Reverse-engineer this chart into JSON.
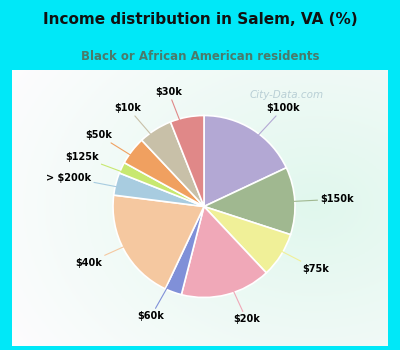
{
  "title": "Income distribution in Salem, VA (%)",
  "subtitle": "Black or African American residents",
  "title_color": "#111111",
  "subtitle_color": "#4a7a6a",
  "bg_cyan": "#00e8f8",
  "bg_chart_color": "#e8f8f0",
  "watermark": "City-Data.com",
  "labels": [
    "$100k",
    "$150k",
    "$75k",
    "$20k",
    "$60k",
    "$40k",
    "> $200k",
    "$125k",
    "$50k",
    "$10k",
    "$30k"
  ],
  "values": [
    18,
    12,
    8,
    16,
    3,
    20,
    4,
    2,
    5,
    6,
    6
  ],
  "colors": [
    "#b3a8d4",
    "#a0b890",
    "#f0f098",
    "#f0a8b8",
    "#8090d8",
    "#f5c8a0",
    "#a8cce0",
    "#c8e870",
    "#f0a060",
    "#c8c0a8",
    "#e08888"
  ],
  "line_colors": [
    "#b3a8d4",
    "#a0b890",
    "#f0f098",
    "#f0a8b8",
    "#8090d8",
    "#f5c8a0",
    "#a8cce0",
    "#c8e870",
    "#f0a060",
    "#c8c0a8",
    "#e08888"
  ]
}
